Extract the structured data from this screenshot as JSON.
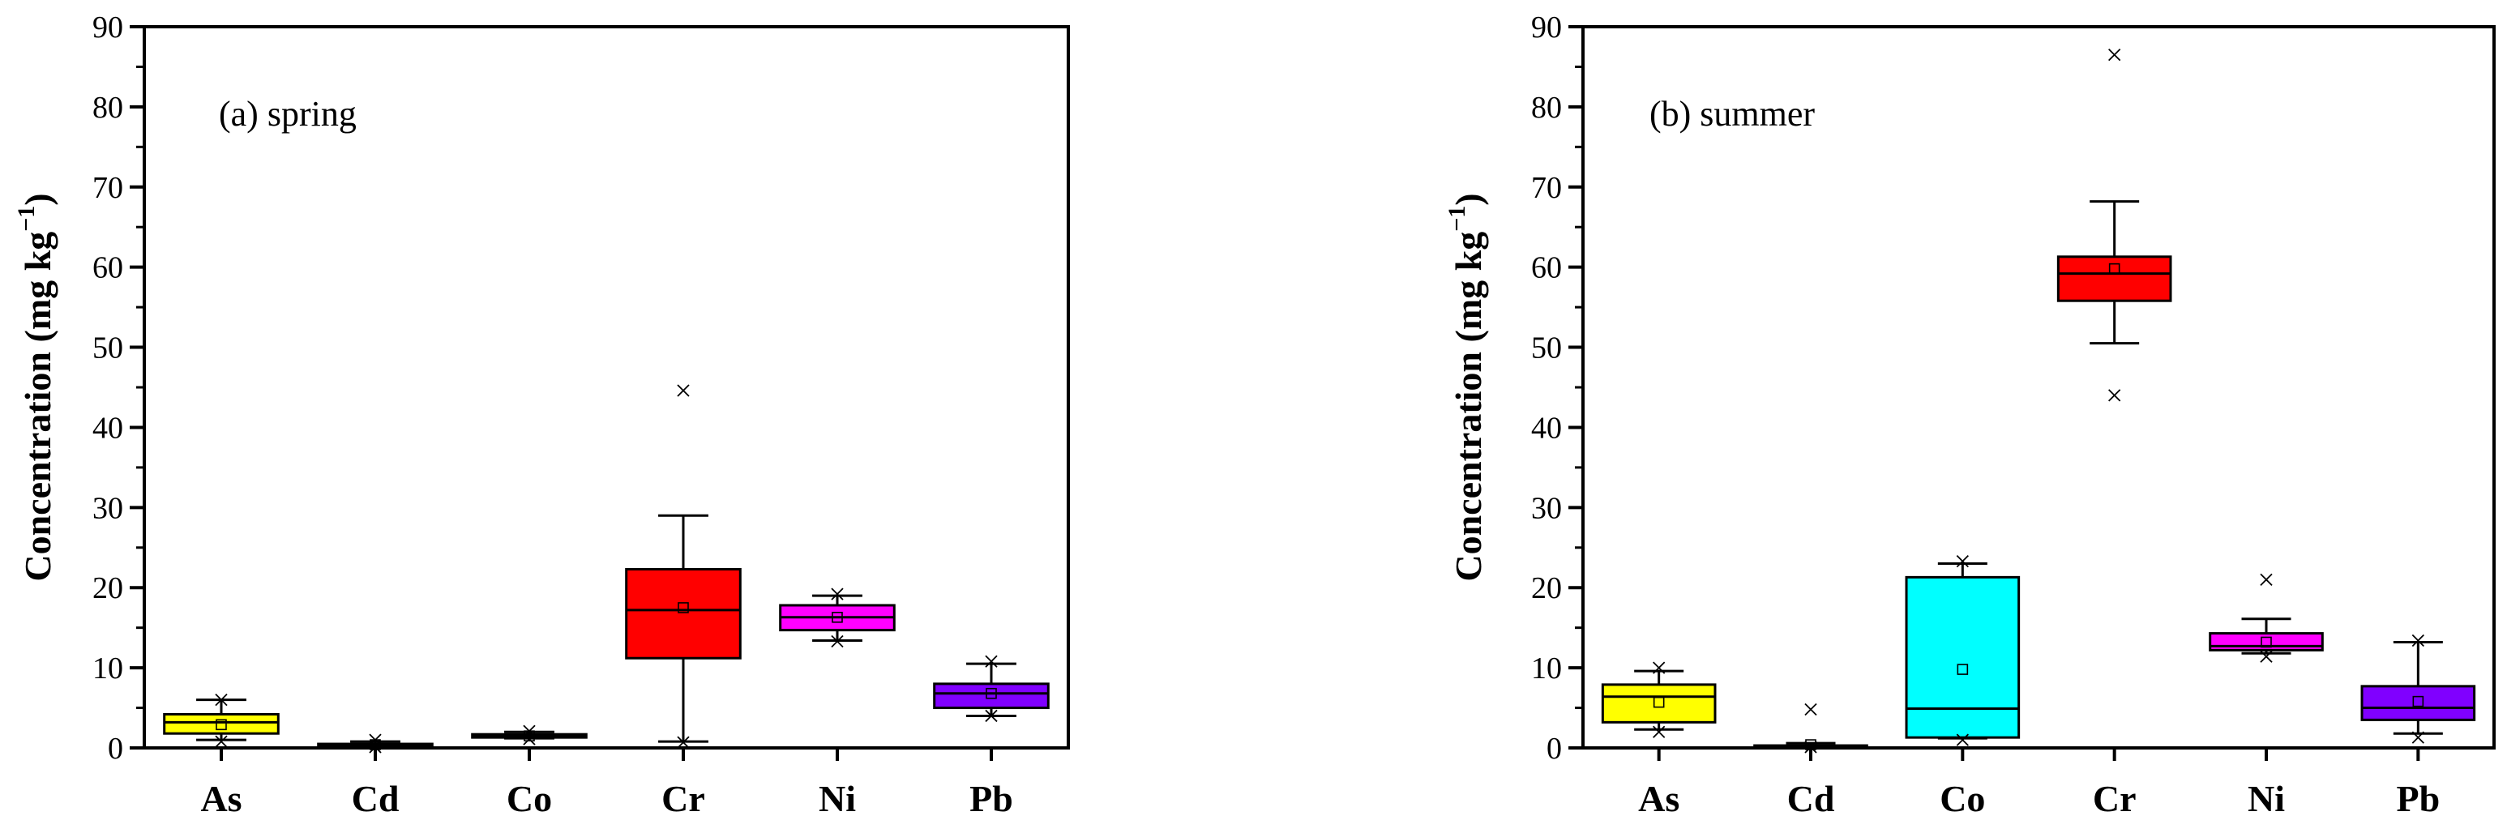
{
  "chart_data": [
    {
      "type": "box",
      "panel_label": "(a) spring",
      "ylabel": "Concentration (mg kg",
      "ylabel_sup": "−1",
      "ylabel_close": ")",
      "ylim": [
        0,
        90
      ],
      "yticks": [
        "0",
        "10",
        "20",
        "30",
        "40",
        "50",
        "60",
        "70",
        "80",
        "90"
      ],
      "categories": [
        "As",
        "Cd",
        "Co",
        "Cr",
        "Ni",
        "Pb"
      ],
      "boxes": [
        {
          "name": "As",
          "color": "#ffff00",
          "min": 1.0,
          "q1": 1.8,
          "median": 3.2,
          "q3": 4.2,
          "max": 6.0,
          "mean": 2.9,
          "outliers_low": [
            0.8
          ],
          "outliers_high": [
            6.0
          ]
        },
        {
          "name": "Cd",
          "color": "#808080",
          "min": 0.1,
          "q1": 0.2,
          "median": 0.3,
          "q3": 0.5,
          "max": 0.8,
          "mean": 0.4,
          "outliers_low": [
            0.1
          ],
          "outliers_high": [
            1.0
          ]
        },
        {
          "name": "Co",
          "color": "#8a8a8a",
          "min": 1.2,
          "q1": 1.3,
          "median": 1.5,
          "q3": 1.7,
          "max": 2.0,
          "mean": 1.5,
          "outliers_low": [
            1.1
          ],
          "outliers_high": [
            2.1
          ]
        },
        {
          "name": "Cr",
          "color": "#ff0000",
          "min": 0.8,
          "q1": 11.2,
          "median": 17.2,
          "q3": 22.3,
          "max": 29.0,
          "mean": 17.5,
          "outliers_low": [
            0.7
          ],
          "outliers_high": [
            44.6
          ]
        },
        {
          "name": "Ni",
          "color": "#ff00ff",
          "min": 13.4,
          "q1": 14.7,
          "median": 16.3,
          "q3": 17.8,
          "max": 19.0,
          "mean": 16.3,
          "outliers_low": [
            13.3
          ],
          "outliers_high": [
            19.2
          ]
        },
        {
          "name": "Pb",
          "color": "#8000ff",
          "min": 4.0,
          "q1": 5.0,
          "median": 6.8,
          "q3": 8.0,
          "max": 10.5,
          "mean": 6.8,
          "outliers_low": [
            4.0
          ],
          "outliers_high": [
            10.8
          ]
        }
      ]
    },
    {
      "type": "box",
      "panel_label": "(b) summer",
      "ylabel": "Concentration (mg kg",
      "ylabel_sup": "−1",
      "ylabel_close": ")",
      "ylim": [
        0,
        90
      ],
      "yticks": [
        "0",
        "10",
        "20",
        "30",
        "40",
        "50",
        "60",
        "70",
        "80",
        "90"
      ],
      "categories": [
        "As",
        "Cd",
        "Co",
        "Cr",
        "Ni",
        "Pb"
      ],
      "boxes": [
        {
          "name": "As",
          "color": "#ffff00",
          "min": 2.3,
          "q1": 3.2,
          "median": 6.4,
          "q3": 7.9,
          "max": 9.6,
          "mean": 5.7,
          "outliers_low": [
            2.0
          ],
          "outliers_high": [
            10.0
          ]
        },
        {
          "name": "Cd",
          "color": "#808080",
          "min": 0.1,
          "q1": 0.1,
          "median": 0.2,
          "q3": 0.3,
          "max": 0.6,
          "mean": 0.4,
          "outliers_low": [
            0.1
          ],
          "outliers_high": [
            4.8
          ]
        },
        {
          "name": "Co",
          "color": "#00ffff",
          "min": 1.2,
          "q1": 1.3,
          "median": 4.9,
          "q3": 21.3,
          "max": 23.0,
          "mean": 9.8,
          "outliers_low": [
            1.0
          ],
          "outliers_high": [
            23.3
          ]
        },
        {
          "name": "Cr",
          "color": "#ff0000",
          "min": 50.5,
          "q1": 55.8,
          "median": 59.2,
          "q3": 61.3,
          "max": 68.2,
          "mean": 59.8,
          "outliers_low": [
            44.0
          ],
          "outliers_high": [
            86.5
          ]
        },
        {
          "name": "Ni",
          "color": "#ff00ff",
          "min": 11.8,
          "q1": 12.2,
          "median": 12.7,
          "q3": 14.3,
          "max": 16.1,
          "mean": 13.2,
          "outliers_low": [
            11.4
          ],
          "outliers_high": [
            21.0
          ]
        },
        {
          "name": "Pb",
          "color": "#8000ff",
          "min": 1.8,
          "q1": 3.5,
          "median": 5.0,
          "q3": 7.7,
          "max": 13.2,
          "mean": 5.8,
          "outliers_low": [
            1.3
          ],
          "outliers_high": [
            13.4
          ]
        }
      ]
    }
  ]
}
